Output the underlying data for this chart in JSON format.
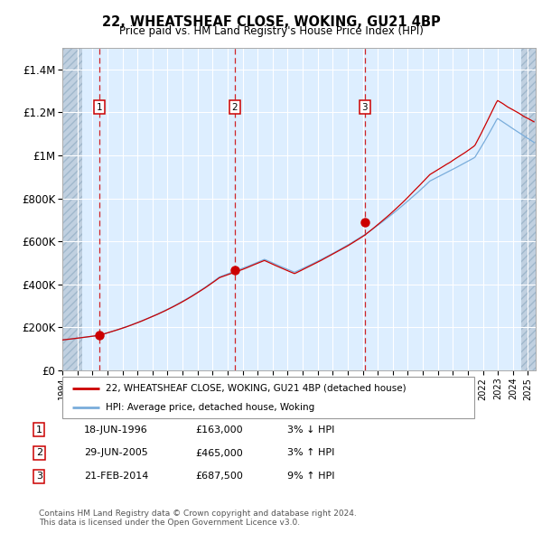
{
  "title": "22, WHEATSHEAF CLOSE, WOKING, GU21 4BP",
  "subtitle": "Price paid vs. HM Land Registry's House Price Index (HPI)",
  "ylim": [
    0,
    1500000
  ],
  "xlim_start": 1994.0,
  "xlim_end": 2025.5,
  "yticks": [
    0,
    200000,
    400000,
    600000,
    800000,
    1000000,
    1200000,
    1400000
  ],
  "ytick_labels": [
    "£0",
    "£200K",
    "£400K",
    "£600K",
    "£800K",
    "£1M",
    "£1.2M",
    "£1.4M"
  ],
  "sale_dates": [
    1996.46,
    2005.49,
    2014.13
  ],
  "sale_prices": [
    163000,
    465000,
    687500
  ],
  "sale_labels": [
    "1",
    "2",
    "3"
  ],
  "hpi_color": "#7aaddb",
  "price_color": "#cc0000",
  "point_color": "#cc0000",
  "legend_label_red": "22, WHEATSHEAF CLOSE, WOKING, GU21 4BP (detached house)",
  "legend_label_blue": "HPI: Average price, detached house, Woking",
  "table_rows": [
    [
      "1",
      "18-JUN-1996",
      "£163,000",
      "3% ↓ HPI"
    ],
    [
      "2",
      "29-JUN-2005",
      "£465,000",
      "3% ↑ HPI"
    ],
    [
      "3",
      "21-FEB-2014",
      "£687,500",
      "9% ↑ HPI"
    ]
  ],
  "footnote": "Contains HM Land Registry data © Crown copyright and database right 2024.\nThis data is licensed under the Open Government Licence v3.0.",
  "background_plot": "#ddeeff",
  "grid_color": "#ffffff",
  "label_box_color": "#cc0000",
  "hatch_color": "#c0d0e0"
}
